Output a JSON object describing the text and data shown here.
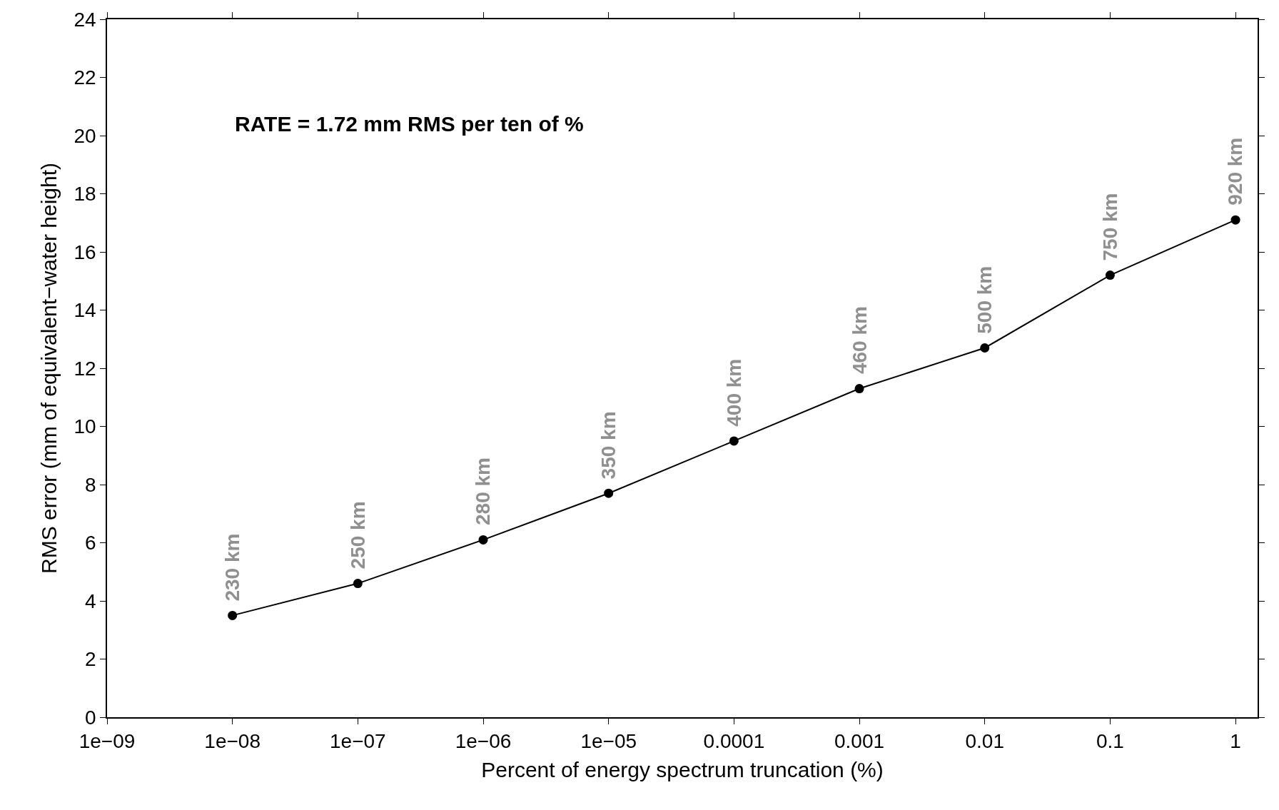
{
  "chart_data": {
    "type": "line",
    "xlabel": "Percent of energy spectrum truncation (%)",
    "ylabel": "RMS error (mm of equivalent−water height)",
    "x": [
      1e-08,
      1e-07,
      1e-06,
      1e-05,
      0.0001,
      0.001,
      0.01,
      0.1,
      1
    ],
    "series": [
      {
        "color": "#000000",
        "values": [
          3.5,
          4.6,
          6.1,
          7.7,
          9.5,
          11.3,
          12.7,
          15.2,
          17.1
        ]
      }
    ],
    "log": "x",
    "marker": "circle",
    "line_style": "solid",
    "legend": false,
    "xlim": [
      1e-09,
      1.5
    ],
    "xticks": [
      {
        "value": 1e-09,
        "label": "1e−09"
      },
      {
        "value": 1e-08,
        "label": "1e−08"
      },
      {
        "value": 1e-07,
        "label": "1e−07"
      },
      {
        "value": 1e-06,
        "label": "1e−06"
      },
      {
        "value": 1e-05,
        "label": "1e−05"
      },
      {
        "value": 0.0001,
        "label": "0.0001"
      },
      {
        "value": 0.001,
        "label": "0.001"
      },
      {
        "value": 0.01,
        "label": "0.01"
      },
      {
        "value": 0.1,
        "label": "0.1"
      },
      {
        "value": 1,
        "label": "1"
      }
    ],
    "ylim": [
      0,
      24
    ],
    "yticks": [
      0,
      2,
      4,
      6,
      8,
      10,
      12,
      14,
      16,
      18,
      20,
      22,
      24
    ],
    "annotations": [
      "RATE = 1.72 mm RMS per ten of %",
      {
        "text": "230 km",
        "x": 1e-08,
        "y": 3.5
      },
      {
        "text": "250 km",
        "x": 1e-07,
        "y": 4.6
      },
      {
        "text": "280 km",
        "x": 1e-06,
        "y": 6.1
      },
      {
        "text": "350 km",
        "x": 1e-05,
        "y": 7.7
      },
      {
        "text": "400 km",
        "x": 0.0001,
        "y": 9.5
      },
      {
        "text": "460 km",
        "x": 0.001,
        "y": 11.3
      },
      {
        "text": "500 km",
        "x": 0.01,
        "y": 12.7
      },
      {
        "text": "750 km",
        "x": 0.1,
        "y": 15.2
      },
      {
        "text": "920 km",
        "x": 1,
        "y": 17.1
      }
    ]
  }
}
